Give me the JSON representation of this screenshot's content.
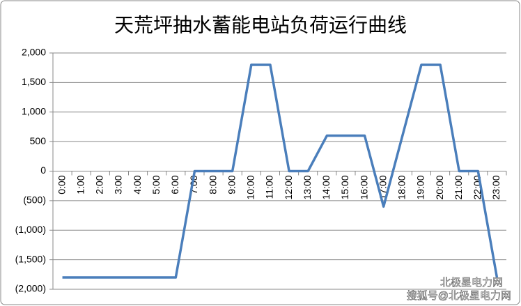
{
  "chart_data": {
    "type": "line",
    "title": "天荒坪抽水蓄能电站负荷运行曲线",
    "categories": [
      "0:00",
      "1:00",
      "2:00",
      "3:00",
      "4:00",
      "5:00",
      "6:00",
      "7:00",
      "8:00",
      "9:00",
      "10:00",
      "11:00",
      "12:00",
      "13:00",
      "14:00",
      "15:00",
      "16:00",
      "17:00",
      "18:00",
      "19:00",
      "20:00",
      "21:00",
      "22:00",
      "23:00"
    ],
    "series": [
      {
        "color": "#4a7ebb",
        "values": [
          -1800,
          -1800,
          -1800,
          -1800,
          -1800,
          -1800,
          -1800,
          0,
          0,
          0,
          1800,
          1800,
          0,
          0,
          600,
          600,
          600,
          -600,
          600,
          1800,
          1800,
          0,
          0,
          -1800
        ]
      }
    ],
    "ylim": [
      -2000,
      2000
    ],
    "yticks": [
      {
        "value": 2000,
        "label": "2,000"
      },
      {
        "value": 1500,
        "label": "1,500"
      },
      {
        "value": 1000,
        "label": "1,000"
      },
      500,
      0,
      {
        "value": -500,
        "label": "(500)"
      },
      {
        "value": -1000,
        "label": "(1,000)"
      },
      {
        "value": -1500,
        "label": "(1,500)"
      },
      {
        "value": -2000,
        "label": "(2,000)"
      }
    ],
    "grid": true,
    "watermark": [
      "北极星电力网",
      "搜狐号@北极星电力网"
    ]
  }
}
